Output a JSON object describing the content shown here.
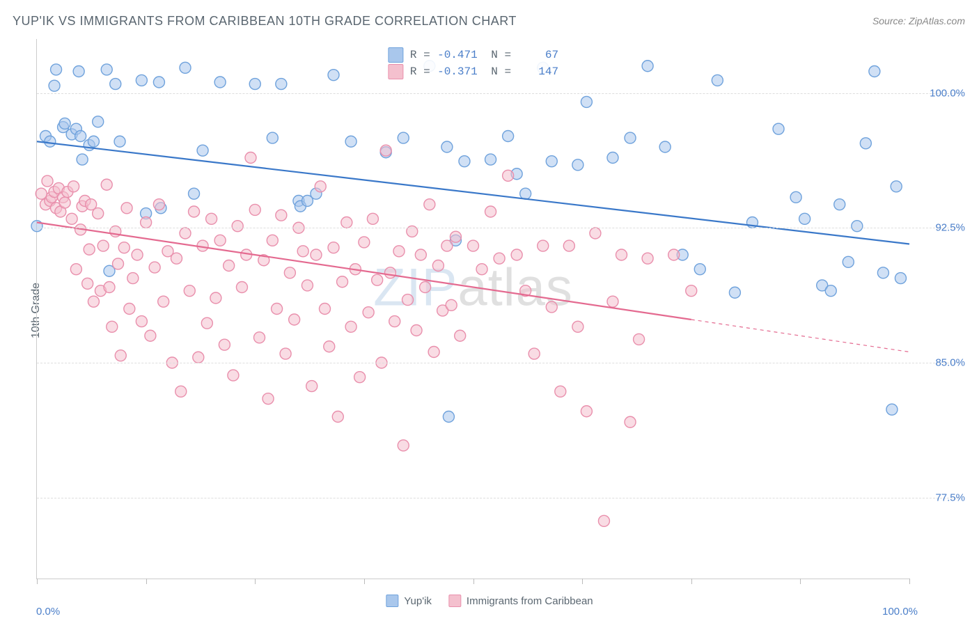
{
  "title": "YUP'IK VS IMMIGRANTS FROM CARIBBEAN 10TH GRADE CORRELATION CHART",
  "source": "Source: ZipAtlas.com",
  "y_axis_label": "10th Grade",
  "watermark": {
    "left": "ZIP",
    "right": "atlas"
  },
  "chart": {
    "type": "scatter",
    "xlim": [
      0,
      100
    ],
    "ylim": [
      73,
      103
    ],
    "x_tick_positions": [
      0,
      12.5,
      25,
      37.5,
      50,
      62.5,
      75,
      87.5,
      100
    ],
    "x_tick_labels": {
      "first": "0.0%",
      "last": "100.0%"
    },
    "y_ticks": [
      77.5,
      85.0,
      92.5,
      100.0
    ],
    "y_tick_labels": [
      "77.5%",
      "85.0%",
      "92.5%",
      "100.0%"
    ],
    "grid_color": "#dddddd",
    "background_color": "#ffffff",
    "axis_color": "#cccccc",
    "tick_label_color": "#4a7ec9",
    "point_radius": 8,
    "point_opacity": 0.55,
    "line_width": 2.2,
    "series": [
      {
        "name": "Yup'ik",
        "color_fill": "#a9c7ec",
        "color_stroke": "#6fa2dc",
        "line_color": "#3a78c9",
        "r": -0.471,
        "n": 67,
        "trend": {
          "x1": 0,
          "y1": 97.3,
          "x2": 100,
          "y2": 91.6,
          "solid_until_x": 100
        },
        "points": [
          [
            0,
            92.6
          ],
          [
            1,
            97.6
          ],
          [
            1.5,
            97.3
          ],
          [
            2,
            100.4
          ],
          [
            2.2,
            101.3
          ],
          [
            3,
            98.1
          ],
          [
            3.2,
            98.3
          ],
          [
            4,
            97.7
          ],
          [
            4.5,
            98.0
          ],
          [
            4.8,
            101.2
          ],
          [
            5,
            97.6
          ],
          [
            5.2,
            96.3
          ],
          [
            6,
            97.1
          ],
          [
            6.5,
            97.3
          ],
          [
            7,
            98.4
          ],
          [
            8,
            101.3
          ],
          [
            8.3,
            90.1
          ],
          [
            9,
            100.5
          ],
          [
            9.5,
            97.3
          ],
          [
            12,
            100.7
          ],
          [
            12.5,
            93.3
          ],
          [
            14,
            100.6
          ],
          [
            14.2,
            93.6
          ],
          [
            17,
            101.4
          ],
          [
            18,
            94.4
          ],
          [
            19,
            96.8
          ],
          [
            21,
            100.6
          ],
          [
            25,
            100.5
          ],
          [
            27,
            97.5
          ],
          [
            28,
            100.5
          ],
          [
            30,
            94.0
          ],
          [
            30.2,
            93.7
          ],
          [
            31,
            94.0
          ],
          [
            32,
            94.4
          ],
          [
            34,
            101.0
          ],
          [
            36,
            97.3
          ],
          [
            40,
            96.7
          ],
          [
            42,
            97.5
          ],
          [
            45,
            101.5
          ],
          [
            47,
            97.0
          ],
          [
            47.2,
            82.0
          ],
          [
            48,
            91.8
          ],
          [
            49,
            96.2
          ],
          [
            52,
            96.3
          ],
          [
            54,
            97.6
          ],
          [
            55,
            95.5
          ],
          [
            56,
            94.4
          ],
          [
            58,
            101.4
          ],
          [
            59,
            96.2
          ],
          [
            62,
            96.0
          ],
          [
            63,
            99.5
          ],
          [
            66,
            96.4
          ],
          [
            68,
            97.5
          ],
          [
            70,
            101.5
          ],
          [
            72,
            97.0
          ],
          [
            74,
            91.0
          ],
          [
            76,
            90.2
          ],
          [
            78,
            100.7
          ],
          [
            80,
            88.9
          ],
          [
            82,
            92.8
          ],
          [
            85,
            98.0
          ],
          [
            87,
            94.2
          ],
          [
            88,
            93.0
          ],
          [
            90,
            89.3
          ],
          [
            91,
            89.0
          ],
          [
            92,
            93.8
          ],
          [
            93,
            90.6
          ],
          [
            94,
            92.6
          ],
          [
            95,
            97.2
          ],
          [
            96,
            101.2
          ],
          [
            97,
            90.0
          ],
          [
            98,
            82.4
          ],
          [
            98.5,
            94.8
          ],
          [
            99,
            89.7
          ]
        ]
      },
      {
        "name": "Immigrants from Caribbean",
        "color_fill": "#f4c0ce",
        "color_stroke": "#e98fac",
        "line_color": "#e46a90",
        "r": -0.371,
        "n": 147,
        "trend": {
          "x1": 0,
          "y1": 92.8,
          "x2": 100,
          "y2": 85.6,
          "solid_until_x": 75
        },
        "points": [
          [
            0.5,
            94.4
          ],
          [
            1,
            93.8
          ],
          [
            1.2,
            95.1
          ],
          [
            1.5,
            94.0
          ],
          [
            1.7,
            94.2
          ],
          [
            2,
            94.5
          ],
          [
            2.2,
            93.6
          ],
          [
            2.5,
            94.7
          ],
          [
            2.7,
            93.4
          ],
          [
            3,
            94.2
          ],
          [
            3.2,
            93.9
          ],
          [
            3.5,
            94.5
          ],
          [
            4,
            93.0
          ],
          [
            4.2,
            94.8
          ],
          [
            4.5,
            90.2
          ],
          [
            5,
            92.4
          ],
          [
            5.2,
            93.7
          ],
          [
            5.5,
            94.0
          ],
          [
            5.8,
            89.4
          ],
          [
            6,
            91.3
          ],
          [
            6.2,
            93.8
          ],
          [
            6.5,
            88.4
          ],
          [
            7,
            93.3
          ],
          [
            7.3,
            89.0
          ],
          [
            7.6,
            91.5
          ],
          [
            8,
            94.9
          ],
          [
            8.3,
            89.2
          ],
          [
            8.6,
            87.0
          ],
          [
            9,
            92.3
          ],
          [
            9.3,
            90.5
          ],
          [
            9.6,
            85.4
          ],
          [
            10,
            91.4
          ],
          [
            10.3,
            93.6
          ],
          [
            10.6,
            88.0
          ],
          [
            11,
            89.7
          ],
          [
            11.5,
            91.0
          ],
          [
            12,
            87.3
          ],
          [
            12.5,
            92.8
          ],
          [
            13,
            86.5
          ],
          [
            13.5,
            90.3
          ],
          [
            14,
            93.8
          ],
          [
            14.5,
            88.4
          ],
          [
            15,
            91.2
          ],
          [
            15.5,
            85.0
          ],
          [
            16,
            90.8
          ],
          [
            16.5,
            83.4
          ],
          [
            17,
            92.2
          ],
          [
            17.5,
            89.0
          ],
          [
            18,
            93.4
          ],
          [
            18.5,
            85.3
          ],
          [
            19,
            91.5
          ],
          [
            19.5,
            87.2
          ],
          [
            20,
            93.0
          ],
          [
            20.5,
            88.6
          ],
          [
            21,
            91.8
          ],
          [
            21.5,
            86.0
          ],
          [
            22,
            90.4
          ],
          [
            22.5,
            84.3
          ],
          [
            23,
            92.6
          ],
          [
            23.5,
            89.2
          ],
          [
            24,
            91.0
          ],
          [
            24.5,
            96.4
          ],
          [
            25,
            93.5
          ],
          [
            25.5,
            86.4
          ],
          [
            26,
            90.7
          ],
          [
            26.5,
            83.0
          ],
          [
            27,
            91.8
          ],
          [
            27.5,
            88.0
          ],
          [
            28,
            93.2
          ],
          [
            28.5,
            85.5
          ],
          [
            29,
            90.0
          ],
          [
            29.5,
            87.4
          ],
          [
            30,
            92.5
          ],
          [
            30.5,
            91.2
          ],
          [
            31,
            89.3
          ],
          [
            31.5,
            83.7
          ],
          [
            32,
            91.0
          ],
          [
            32.5,
            94.8
          ],
          [
            33,
            88.0
          ],
          [
            33.5,
            85.9
          ],
          [
            34,
            91.4
          ],
          [
            34.5,
            82.0
          ],
          [
            35,
            89.5
          ],
          [
            35.5,
            92.8
          ],
          [
            36,
            87.0
          ],
          [
            36.5,
            90.2
          ],
          [
            37,
            84.2
          ],
          [
            37.5,
            91.7
          ],
          [
            38,
            87.8
          ],
          [
            38.5,
            93.0
          ],
          [
            39,
            89.6
          ],
          [
            39.5,
            85.0
          ],
          [
            40,
            96.8
          ],
          [
            40.5,
            90.0
          ],
          [
            41,
            87.3
          ],
          [
            41.5,
            91.2
          ],
          [
            42,
            80.4
          ],
          [
            42.5,
            88.5
          ],
          [
            43,
            92.3
          ],
          [
            43.5,
            86.8
          ],
          [
            44,
            91.0
          ],
          [
            44.5,
            89.2
          ],
          [
            45,
            93.8
          ],
          [
            45.5,
            85.6
          ],
          [
            46,
            90.4
          ],
          [
            46.5,
            87.9
          ],
          [
            47,
            91.5
          ],
          [
            47.5,
            88.2
          ],
          [
            48,
            92.0
          ],
          [
            48.5,
            86.5
          ],
          [
            50,
            91.5
          ],
          [
            51,
            90.2
          ],
          [
            52,
            93.4
          ],
          [
            53,
            90.8
          ],
          [
            54,
            95.4
          ],
          [
            55,
            91.0
          ],
          [
            56,
            89.0
          ],
          [
            57,
            85.5
          ],
          [
            58,
            91.5
          ],
          [
            59,
            88.1
          ],
          [
            60,
            83.4
          ],
          [
            61,
            91.5
          ],
          [
            62,
            87.0
          ],
          [
            63,
            82.3
          ],
          [
            64,
            92.2
          ],
          [
            65,
            76.2
          ],
          [
            66,
            88.4
          ],
          [
            67,
            91.0
          ],
          [
            68,
            81.7
          ],
          [
            69,
            86.3
          ],
          [
            70,
            90.8
          ],
          [
            73,
            91.0
          ],
          [
            75,
            89.0
          ]
        ]
      }
    ]
  },
  "bottom_legend": [
    {
      "label": "Yup'ik",
      "fill": "#a9c7ec",
      "stroke": "#6fa2dc"
    },
    {
      "label": "Immigrants from Caribbean",
      "fill": "#f4c0ce",
      "stroke": "#e98fac"
    }
  ]
}
